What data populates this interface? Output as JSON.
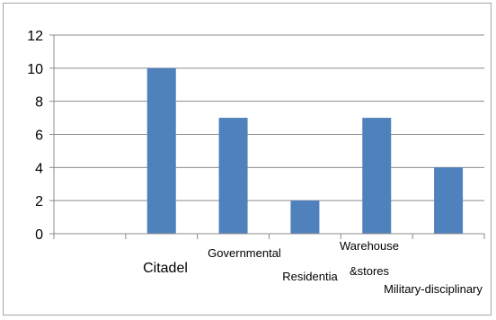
{
  "chart_data": {
    "type": "bar",
    "categories": [
      "",
      "Citadel",
      "Governmental",
      "Residential",
      "Warehouse &stores",
      "Military-disciplinary"
    ],
    "category_label_lines": [
      [
        ""
      ],
      [
        "Citadel"
      ],
      [
        "Governmental"
      ],
      [
        "Residentia"
      ],
      [
        "Warehouse",
        "&stores"
      ],
      [
        "Military-disciplinary"
      ]
    ],
    "values": [
      0,
      10,
      7,
      2,
      7,
      4
    ],
    "ylim": [
      0,
      12
    ],
    "yticks": [
      0,
      2,
      4,
      6,
      8,
      10,
      12
    ],
    "grid": true,
    "legend": "none",
    "bar_color": "#4f81bd",
    "grid_color": "#8c8c8c",
    "axis_color": "#8c8c8c"
  }
}
